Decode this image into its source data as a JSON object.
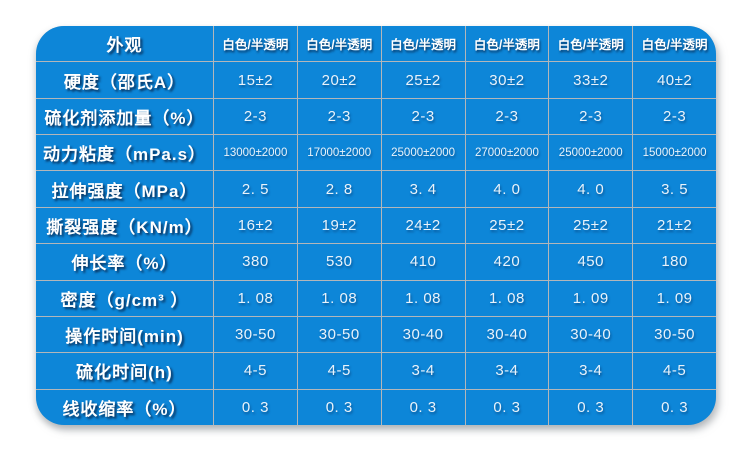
{
  "colors": {
    "table_blue": "#0d86d8",
    "grid_line": "#b3b6b9",
    "label_text": "#ffffff",
    "value_text": "#e9f3fb",
    "page_background": "#ffffff"
  },
  "chart_data": {
    "type": "table",
    "title": "",
    "row_header_column": "",
    "rows": [
      {
        "label": "外观",
        "values": [
          "白色/半透明",
          "白色/半透明",
          "白色/半透明",
          "白色/半透明",
          "白色/半透明",
          "白色/半透明"
        ]
      },
      {
        "label": "硬度（邵氏A）",
        "values": [
          "15±2",
          "20±2",
          "25±2",
          "30±2",
          "33±2",
          "40±2"
        ]
      },
      {
        "label": "硫化剂添加量（%）",
        "values": [
          "2-3",
          "2-3",
          "2-3",
          "2-3",
          "2-3",
          "2-3"
        ]
      },
      {
        "label": "动力粘度（mPa.s）",
        "values": [
          "13000±2000",
          "17000±2000",
          "25000±2000",
          "27000±2000",
          "25000±2000",
          "15000±2000"
        ]
      },
      {
        "label": "拉伸强度（MPa）",
        "values": [
          "2. 5",
          "2. 8",
          "3. 4",
          "4. 0",
          "4. 0",
          "3. 5"
        ]
      },
      {
        "label": "撕裂强度（KN/m）",
        "values": [
          "16±2",
          "19±2",
          "24±2",
          "25±2",
          "25±2",
          "21±2"
        ]
      },
      {
        "label": "伸长率（%）",
        "values": [
          "380",
          "530",
          "410",
          "420",
          "450",
          "180"
        ]
      },
      {
        "label": "密度（g/cm³ ）",
        "values": [
          "1. 08",
          "1. 08",
          "1. 08",
          "1. 08",
          "1. 09",
          "1. 09"
        ]
      },
      {
        "label": "操作时间(min)",
        "values": [
          "30-50",
          "30-50",
          "30-40",
          "30-40",
          "30-40",
          "30-50"
        ]
      },
      {
        "label": "硫化时间(h)",
        "values": [
          "4-5",
          "4-5",
          "3-4",
          "3-4",
          "3-4",
          "4-5"
        ]
      },
      {
        "label": "线收缩率（%）",
        "values": [
          "0. 3",
          "0. 3",
          "0. 3",
          "0. 3",
          "0. 3",
          "0. 3"
        ]
      }
    ]
  }
}
